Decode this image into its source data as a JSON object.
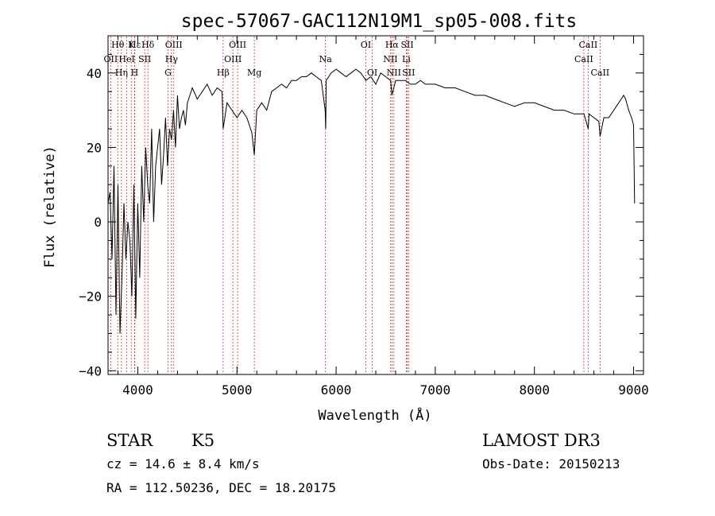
{
  "chart_data": {
    "type": "line",
    "title": "spec-57067-GAC112N19M1_sp05-008.fits",
    "xlabel": "Wavelength (Å)",
    "ylabel": "Flux (relative)",
    "xlim": [
      3700,
      9100
    ],
    "ylim": [
      -41,
      50
    ],
    "xticks": [
      {
        "value": 4000,
        "label": "4000"
      },
      {
        "value": 5000,
        "label": "5000"
      },
      {
        "value": 6000,
        "label": "6000"
      },
      {
        "value": 7000,
        "label": "7000"
      },
      {
        "value": 8000,
        "label": "8000"
      },
      {
        "value": 9000,
        "label": "9000"
      }
    ],
    "yticks": [
      {
        "value": -40,
        "label": "−40"
      },
      {
        "value": -20,
        "label": "−20"
      },
      {
        "value": 0,
        "label": "0"
      },
      {
        "value": 20,
        "label": "20"
      },
      {
        "value": 40,
        "label": "40"
      }
    ],
    "series": [
      {
        "name": "spectrum",
        "x": [
          3700,
          3720,
          3740,
          3760,
          3780,
          3800,
          3820,
          3840,
          3860,
          3880,
          3900,
          3920,
          3940,
          3960,
          3980,
          4000,
          4020,
          4040,
          4060,
          4080,
          4100,
          4120,
          4140,
          4160,
          4180,
          4200,
          4220,
          4240,
          4260,
          4280,
          4300,
          4320,
          4340,
          4360,
          4380,
          4400,
          4420,
          4440,
          4460,
          4480,
          4500,
          4550,
          4600,
          4650,
          4700,
          4750,
          4800,
          4850,
          4861,
          4900,
          4950,
          5000,
          5050,
          5100,
          5150,
          5175,
          5200,
          5250,
          5300,
          5350,
          5400,
          5450,
          5500,
          5550,
          5600,
          5650,
          5700,
          5750,
          5800,
          5850,
          5890,
          5895,
          5900,
          5950,
          6000,
          6050,
          6100,
          6150,
          6200,
          6250,
          6300,
          6350,
          6400,
          6450,
          6500,
          6550,
          6563,
          6600,
          6650,
          6700,
          6750,
          6800,
          6850,
          6900,
          6950,
          7000,
          7100,
          7200,
          7300,
          7400,
          7500,
          7600,
          7700,
          7800,
          7900,
          8000,
          8100,
          8200,
          8300,
          8400,
          8450,
          8500,
          8542,
          8550,
          8600,
          8650,
          8662,
          8700,
          8750,
          8800,
          8850,
          8900,
          8920,
          8950,
          8980,
          9000,
          9010
        ],
        "y": [
          5,
          8,
          -10,
          15,
          -25,
          10,
          -30,
          -15,
          5,
          -10,
          0,
          -5,
          -20,
          10,
          -26,
          5,
          -15,
          15,
          0,
          20,
          10,
          5,
          25,
          0,
          15,
          20,
          25,
          10,
          18,
          28,
          15,
          25,
          22,
          30,
          20,
          34,
          25,
          28,
          30,
          26,
          32,
          36,
          33,
          35,
          37,
          34,
          36,
          35,
          25,
          32,
          30,
          28,
          30,
          28,
          24,
          18,
          30,
          32,
          30,
          35,
          36,
          37,
          36,
          38,
          38,
          39,
          39,
          40,
          39,
          38,
          30,
          25,
          38,
          40,
          41,
          40,
          39,
          40,
          41,
          40,
          38,
          39,
          37,
          40,
          39,
          38,
          34,
          38,
          38,
          38,
          37,
          37,
          38,
          37,
          37,
          37,
          36,
          36,
          35,
          34,
          34,
          33,
          32,
          31,
          32,
          32,
          31,
          30,
          30,
          29,
          29,
          29,
          25,
          29,
          28,
          27,
          23,
          28,
          28,
          30,
          32,
          34,
          33,
          30,
          28,
          26,
          5
        ]
      }
    ],
    "spectral_lines": [
      {
        "name": "Hε",
        "x": 3970,
        "row": 0
      },
      {
        "name": "OII",
        "x": 3727,
        "row": 1
      },
      {
        "name": "Hη",
        "x": 3835,
        "row": 2
      },
      {
        "name": "Hθ",
        "x": 3798,
        "row": 0
      },
      {
        "name": "HeI",
        "x": 3889,
        "row": 1
      },
      {
        "name": "K",
        "x": 3934,
        "row": 0
      },
      {
        "name": "H",
        "x": 3968,
        "row": 2
      },
      {
        "name": "SII",
        "x": 4070,
        "row": 1
      },
      {
        "name": "Hδ",
        "x": 4102,
        "row": 0
      },
      {
        "name": "OIII",
        "x": 4363,
        "row": 0
      },
      {
        "name": "Hγ",
        "x": 4340,
        "row": 1
      },
      {
        "name": "G",
        "x": 4305,
        "row": 2
      },
      {
        "name": "Hβ",
        "x": 4861,
        "row": 2
      },
      {
        "name": "OIII",
        "x": 4959,
        "row": 1
      },
      {
        "name": "OIII",
        "x": 5007,
        "row": 0
      },
      {
        "name": "Mg",
        "x": 5175,
        "row": 2
      },
      {
        "name": "Na",
        "x": 5893,
        "row": 1
      },
      {
        "name": "OI",
        "x": 6300,
        "row": 0
      },
      {
        "name": "OI",
        "x": 6364,
        "row": 2
      },
      {
        "name": "Hα",
        "x": 6563,
        "row": 0
      },
      {
        "name": "NII",
        "x": 6548,
        "row": 1
      },
      {
        "name": "NII",
        "x": 6583,
        "row": 2
      },
      {
        "name": "SII",
        "x": 6717,
        "row": 0
      },
      {
        "name": "Li",
        "x": 6708,
        "row": 1
      },
      {
        "name": "SII",
        "x": 6731,
        "row": 2
      },
      {
        "name": "CaII",
        "x": 8542,
        "row": 0
      },
      {
        "name": "CaII",
        "x": 8498,
        "row": 1
      },
      {
        "name": "CaII",
        "x": 8662,
        "row": 2
      }
    ]
  },
  "info": {
    "class": "STAR",
    "subclass": "K5",
    "survey": "LAMOST DR3",
    "cz": "cz = 14.6 ± 8.4 km/s",
    "obs_date": "Obs-Date: 20150213",
    "coords": "RA = 112.50236, DEC =  18.20175"
  }
}
